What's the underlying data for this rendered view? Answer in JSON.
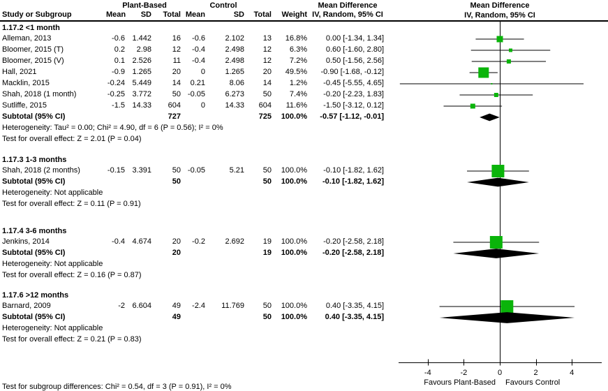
{
  "colors": {
    "marker_green": "#0ab40a",
    "diamond_black": "#000000",
    "line_black": "#000000"
  },
  "table": {
    "group_headers": {
      "plant": "Plant-Based",
      "control": "Control",
      "md_table": "Mean Difference",
      "md_plot": "Mean Difference"
    },
    "col_headers": {
      "study": "Study or Subgroup",
      "mean1": "Mean",
      "sd1": "SD",
      "total1": "Total",
      "mean2": "Mean",
      "sd2": "SD",
      "total2": "Total",
      "weight": "Weight",
      "ci": "IV, Random, 95% CI",
      "ci_plot": "IV, Random, 95% CI"
    }
  },
  "sections": [
    {
      "label": "1.17.2 <1 month",
      "studies": [
        {
          "name": "Alleman, 2013",
          "mean1": "-0.6",
          "sd1": "1.442",
          "total1": "16",
          "mean2": "-0.6",
          "sd2": "2.102",
          "total2": "13",
          "weight": "16.8%",
          "ci": "0.00 [-1.34, 1.34]",
          "effect": 0.0,
          "lo": -1.34,
          "hi": 1.34,
          "w": 16.8
        },
        {
          "name": "Bloomer, 2015 (T)",
          "mean1": "0.2",
          "sd1": "2.98",
          "total1": "12",
          "mean2": "-0.4",
          "sd2": "2.498",
          "total2": "12",
          "weight": "6.3%",
          "ci": "0.60 [-1.60, 2.80]",
          "effect": 0.6,
          "lo": -1.6,
          "hi": 2.8,
          "w": 6.3
        },
        {
          "name": "Bloomer, 2015 (V)",
          "mean1": "0.1",
          "sd1": "2.526",
          "total1": "11",
          "mean2": "-0.4",
          "sd2": "2.498",
          "total2": "12",
          "weight": "7.2%",
          "ci": "0.50 [-1.56, 2.56]",
          "effect": 0.5,
          "lo": -1.56,
          "hi": 2.56,
          "w": 7.2
        },
        {
          "name": "Hall, 2021",
          "mean1": "-0.9",
          "sd1": "1.265",
          "total1": "20",
          "mean2": "0",
          "sd2": "1.265",
          "total2": "20",
          "weight": "49.5%",
          "ci": "-0.90 [-1.68, -0.12]",
          "effect": -0.9,
          "lo": -1.68,
          "hi": -0.12,
          "w": 49.5
        },
        {
          "name": "Macklin, 2015",
          "mean1": "-0.24",
          "sd1": "5.449",
          "total1": "14",
          "mean2": "0.21",
          "sd2": "8.06",
          "total2": "14",
          "weight": "1.2%",
          "ci": "-0.45 [-5.55, 4.65]",
          "effect": -0.45,
          "lo": -5.55,
          "hi": 4.65,
          "w": 1.2
        },
        {
          "name": "Shah, 2018 (1 month)",
          "mean1": "-0.25",
          "sd1": "3.772",
          "total1": "50",
          "mean2": "-0.05",
          "sd2": "6.273",
          "total2": "50",
          "weight": "7.4%",
          "ci": "-0.20 [-2.23, 1.83]",
          "effect": -0.2,
          "lo": -2.23,
          "hi": 1.83,
          "w": 7.4
        },
        {
          "name": "Sutliffe, 2015",
          "mean1": "-1.5",
          "sd1": "14.33",
          "total1": "604",
          "mean2": "0",
          "sd2": "14.33",
          "total2": "604",
          "weight": "11.6%",
          "ci": "-1.50 [-3.12, 0.12]",
          "effect": -1.5,
          "lo": -3.12,
          "hi": 0.12,
          "w": 11.6
        }
      ],
      "subtotal": {
        "name": "Subtotal (95% CI)",
        "total1": "727",
        "total2": "725",
        "weight": "100.0%",
        "ci": "-0.57 [-1.12, -0.01]",
        "effect": -0.57,
        "lo": -1.12,
        "hi": -0.01
      },
      "heterogeneity": "Heterogeneity: Tau² = 0.00; Chi² = 4.90, df = 6 (P = 0.56); I² = 0%",
      "test": "Test for overall effect: Z = 2.01 (P = 0.04)"
    },
    {
      "label": "1.17.3 1-3 months",
      "studies": [
        {
          "name": "Shah, 2018 (2 months)",
          "mean1": "-0.15",
          "sd1": "3.391",
          "total1": "50",
          "mean2": "-0.05",
          "sd2": "5.21",
          "total2": "50",
          "weight": "100.0%",
          "ci": "-0.10 [-1.82, 1.62]",
          "effect": -0.1,
          "lo": -1.82,
          "hi": 1.62,
          "w": 100.0
        }
      ],
      "subtotal": {
        "name": "Subtotal (95% CI)",
        "total1": "50",
        "total2": "50",
        "weight": "100.0%",
        "ci": "-0.10 [-1.82, 1.62]",
        "effect": -0.1,
        "lo": -1.82,
        "hi": 1.62
      },
      "heterogeneity": "Heterogeneity: Not applicable",
      "test": "Test for overall effect: Z = 0.11 (P = 0.91)"
    },
    {
      "label": "1.17.4 3-6 months",
      "studies": [
        {
          "name": "Jenkins, 2014",
          "mean1": "-0.4",
          "sd1": "4.674",
          "total1": "20",
          "mean2": "-0.2",
          "sd2": "2.692",
          "total2": "19",
          "weight": "100.0%",
          "ci": "-0.20 [-2.58, 2.18]",
          "effect": -0.2,
          "lo": -2.58,
          "hi": 2.18,
          "w": 100.0
        }
      ],
      "subtotal": {
        "name": "Subtotal (95% CI)",
        "total1": "20",
        "total2": "19",
        "weight": "100.0%",
        "ci": "-0.20 [-2.58, 2.18]",
        "effect": -0.2,
        "lo": -2.58,
        "hi": 2.18
      },
      "heterogeneity": "Heterogeneity: Not applicable",
      "test": "Test for overall effect: Z = 0.16 (P = 0.87)"
    },
    {
      "label": "1.17.6 >12 months",
      "studies": [
        {
          "name": "Barnard, 2009",
          "mean1": "-2",
          "sd1": "6.604",
          "total1": "49",
          "mean2": "-2.4",
          "sd2": "11.769",
          "total2": "50",
          "weight": "100.0%",
          "ci": "0.40 [-3.35, 4.15]",
          "effect": 0.4,
          "lo": -3.35,
          "hi": 4.15,
          "w": 100.0
        }
      ],
      "subtotal": {
        "name": "Subtotal (95% CI)",
        "total1": "49",
        "total2": "50",
        "weight": "100.0%",
        "ci": "0.40 [-3.35, 4.15]",
        "effect": 0.4,
        "lo": -3.35,
        "hi": 4.15
      },
      "heterogeneity": "Heterogeneity: Not applicable",
      "test": "Test for overall effect: Z = 0.21 (P = 0.83)"
    }
  ],
  "axis": {
    "ticks": [
      "-4",
      "-2",
      "0",
      "2",
      "4"
    ],
    "tick_values": [
      -4,
      -2,
      0,
      2,
      4
    ],
    "favours_left": "Favours Plant-Based",
    "favours_right": "Favours Control"
  },
  "footer": {
    "text": "Test for subgroup differences: Chi² = 0.54, df = 3 (P = 0.91), I² = 0%"
  },
  "chart_data": {
    "type": "scatter",
    "subtype": "forest-plot",
    "title": "Mean Difference, IV, Random, 95% CI",
    "xlabel": "Favours Plant-Based (left) / Favours Control (right)",
    "xlim": [
      -5.7,
      5.7
    ],
    "x_ticks": [
      -4,
      -2,
      0,
      2,
      4
    ],
    "grid": false,
    "legend": "none",
    "groups": [
      {
        "label": "1.17.2 <1 month",
        "studies": [
          {
            "name": "Alleman, 2013",
            "effect": 0.0,
            "ci": [
              -1.34,
              1.34
            ],
            "weight_pct": 16.8
          },
          {
            "name": "Bloomer, 2015 (T)",
            "effect": 0.6,
            "ci": [
              -1.6,
              2.8
            ],
            "weight_pct": 6.3
          },
          {
            "name": "Bloomer, 2015 (V)",
            "effect": 0.5,
            "ci": [
              -1.56,
              2.56
            ],
            "weight_pct": 7.2
          },
          {
            "name": "Hall, 2021",
            "effect": -0.9,
            "ci": [
              -1.68,
              -0.12
            ],
            "weight_pct": 49.5
          },
          {
            "name": "Macklin, 2015",
            "effect": -0.45,
            "ci": [
              -5.55,
              4.65
            ],
            "weight_pct": 1.2
          },
          {
            "name": "Shah, 2018 (1 month)",
            "effect": -0.2,
            "ci": [
              -2.23,
              1.83
            ],
            "weight_pct": 7.4
          },
          {
            "name": "Sutliffe, 2015",
            "effect": -1.5,
            "ci": [
              -3.12,
              0.12
            ],
            "weight_pct": 11.6
          }
        ],
        "subtotal": {
          "effect": -0.57,
          "ci": [
            -1.12,
            -0.01
          ]
        }
      },
      {
        "label": "1.17.3 1-3 months",
        "studies": [
          {
            "name": "Shah, 2018 (2 months)",
            "effect": -0.1,
            "ci": [
              -1.82,
              1.62
            ],
            "weight_pct": 100.0
          }
        ],
        "subtotal": {
          "effect": -0.1,
          "ci": [
            -1.82,
            1.62
          ]
        }
      },
      {
        "label": "1.17.4 3-6 months",
        "studies": [
          {
            "name": "Jenkins, 2014",
            "effect": -0.2,
            "ci": [
              -2.58,
              2.18
            ],
            "weight_pct": 100.0
          }
        ],
        "subtotal": {
          "effect": -0.2,
          "ci": [
            -2.58,
            2.18
          ]
        }
      },
      {
        "label": "1.17.6 >12 months",
        "studies": [
          {
            "name": "Barnard, 2009",
            "effect": 0.4,
            "ci": [
              -3.35,
              4.15
            ],
            "weight_pct": 100.0
          }
        ],
        "subtotal": {
          "effect": 0.4,
          "ci": [
            -3.35,
            4.15
          ]
        }
      }
    ]
  }
}
